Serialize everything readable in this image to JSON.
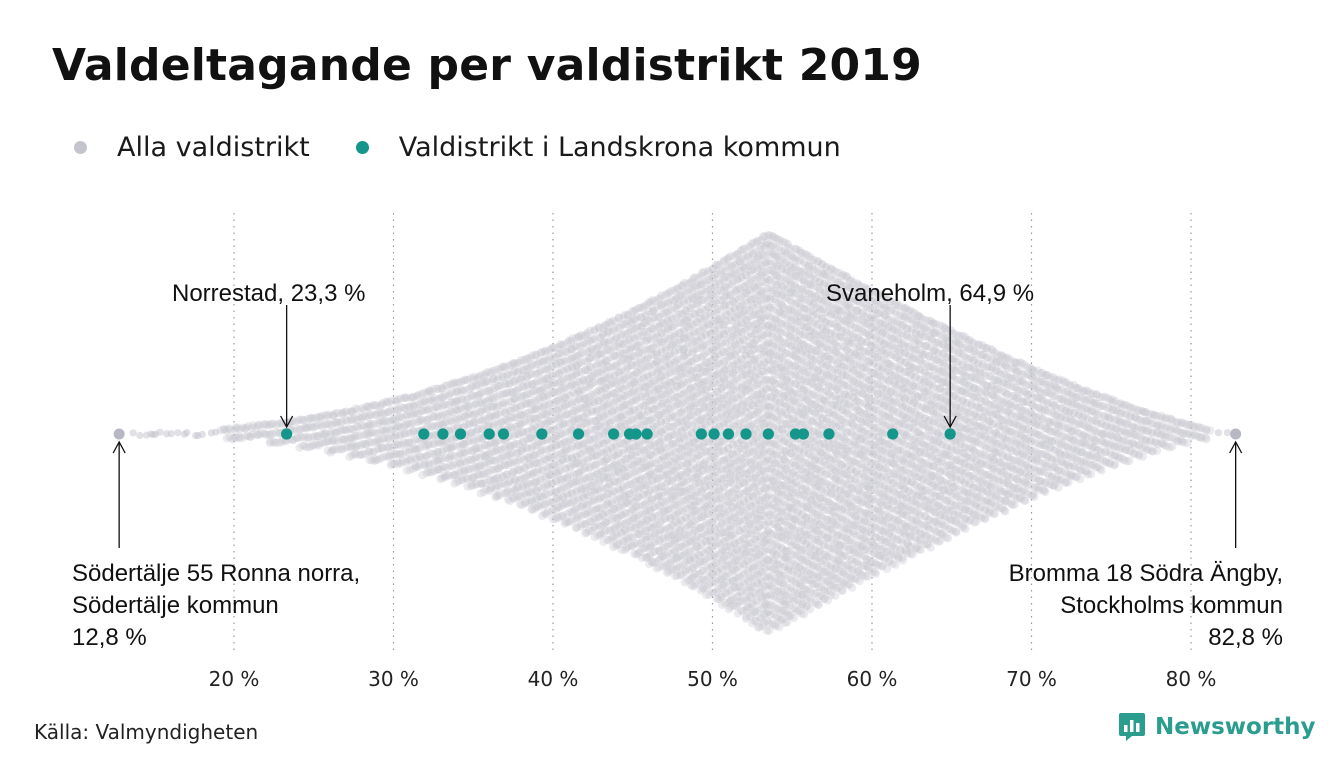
{
  "title": "Valdeltagande per valdistrikt 2019",
  "legend": [
    {
      "label": "Alla valdistrikt",
      "color": "#c4c4cd"
    },
    {
      "label": "Valdistrikt i Landskrona kommun",
      "color": "#14968a"
    }
  ],
  "source": "Källa: Valmyndigheten",
  "brand": {
    "name": "Newsworthy",
    "icon": "bar-chart-bubble-icon",
    "color": "#2a9d8f"
  },
  "chart_data": {
    "type": "scatter",
    "subtype": "beeswarm",
    "xlim": [
      13,
      83
    ],
    "xticks": [
      20,
      30,
      40,
      50,
      60,
      70,
      80
    ],
    "xtick_labels": [
      "20 %",
      "30 %",
      "40 %",
      "50 %",
      "60 %",
      "70 %",
      "80 %"
    ],
    "grid": "vertical dotted",
    "legend_position": "top-left",
    "series": [
      {
        "name": "Alla valdistrikt",
        "color": "#c4c4cd",
        "min": 12.8,
        "max": 82.8,
        "mode": 53.5
      },
      {
        "name": "Valdistrikt i Landskrona kommun",
        "color": "#14968a",
        "values": [
          23.3,
          31.9,
          33.1,
          34.2,
          36.0,
          36.9,
          39.3,
          41.6,
          43.8,
          44.8,
          45.2,
          45.9,
          49.3,
          50.1,
          51.0,
          52.1,
          53.5,
          55.2,
          55.7,
          57.3,
          61.3,
          64.9
        ]
      }
    ],
    "annotations": [
      {
        "lines": [
          "Norrestad, 23,3 %"
        ],
        "value": 23.3
      },
      {
        "lines": [
          "Svaneholm, 64,9 %"
        ],
        "value": 64.9
      },
      {
        "lines": [
          "Södertälje 55 Ronna norra,",
          "Södertälje kommun",
          "12,8 %"
        ],
        "value": 12.8
      },
      {
        "lines": [
          "Bromma 18 Södra Ängby,",
          "Stockholms kommun",
          "82,8 %"
        ],
        "value": 82.8
      }
    ]
  }
}
